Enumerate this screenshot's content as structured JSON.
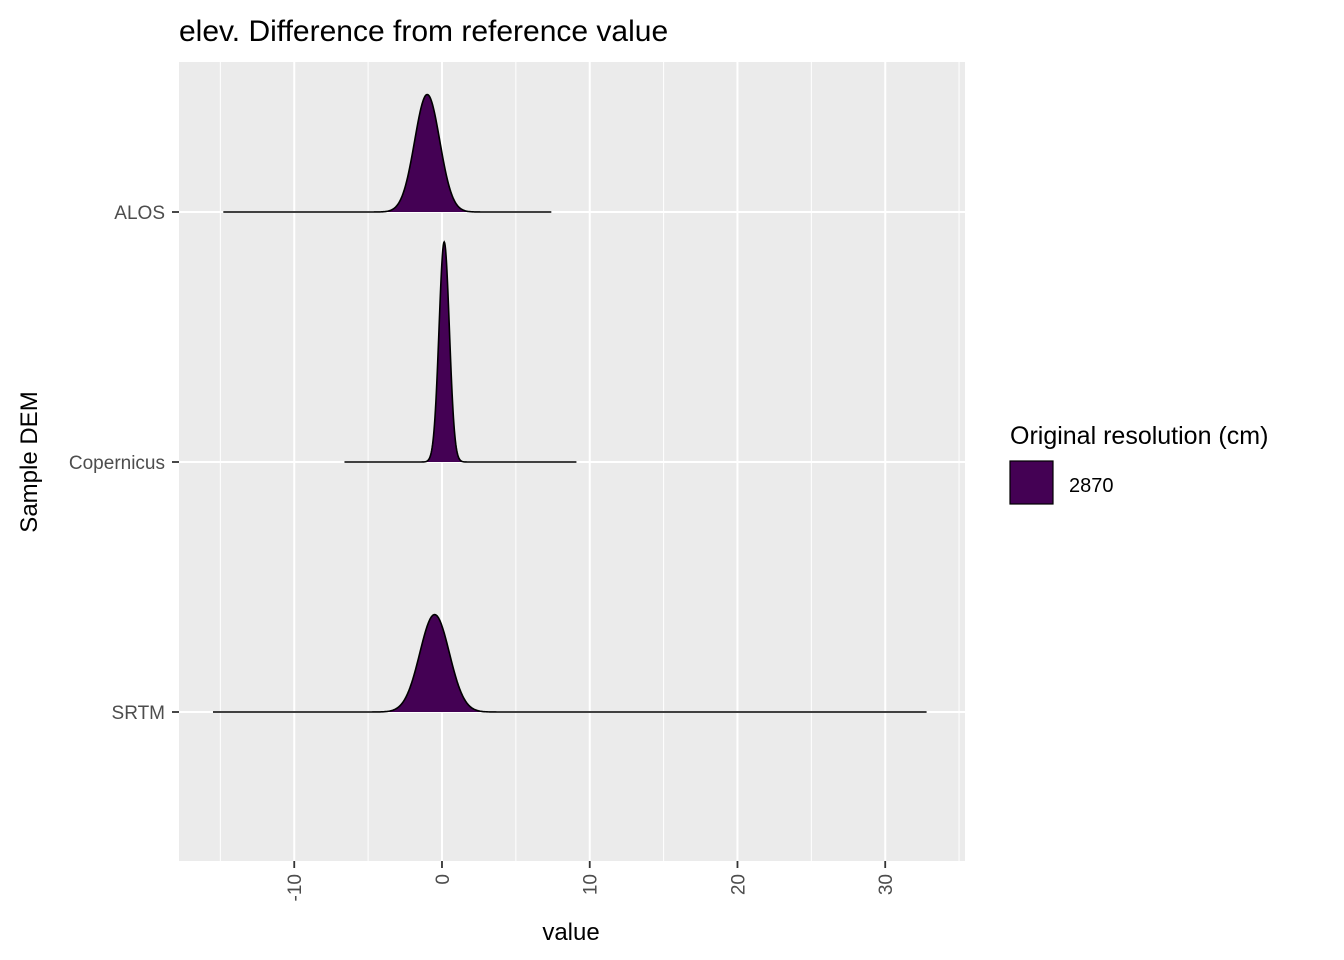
{
  "chart_data": {
    "type": "area",
    "subtype": "ridgeline density",
    "title": "elev. Difference from reference value",
    "xlabel": "value",
    "ylabel": "Sample DEM",
    "xlim": [
      -17.8,
      35.4
    ],
    "x_ticks": [
      -10,
      0,
      10,
      20,
      30
    ],
    "x_tick_labels": [
      "-10",
      "0",
      "10",
      "20",
      "30"
    ],
    "x_minor_ticks": [
      -15,
      -5,
      5,
      15,
      25,
      35
    ],
    "grid": true,
    "categories": [
      "ALOS",
      "Copernicus",
      "SRTM"
    ],
    "legend": {
      "title": "Original resolution (cm)",
      "position": "right",
      "entries": [
        {
          "label": "2870",
          "color": "#440154"
        }
      ]
    },
    "fill_color": "#440154",
    "series": [
      {
        "category": "ALOS",
        "min": -14.8,
        "max": 7.4,
        "mode": -1.0,
        "sd": 0.85,
        "peak": 0.47
      },
      {
        "category": "Copernicus",
        "min": -6.6,
        "max": 9.1,
        "mode": 0.15,
        "sd": 0.35,
        "peak": 0.88
      },
      {
        "category": "SRTM",
        "min": -15.5,
        "max": 32.8,
        "mode": -0.5,
        "sd": 1.0,
        "peak": 0.39
      }
    ]
  }
}
